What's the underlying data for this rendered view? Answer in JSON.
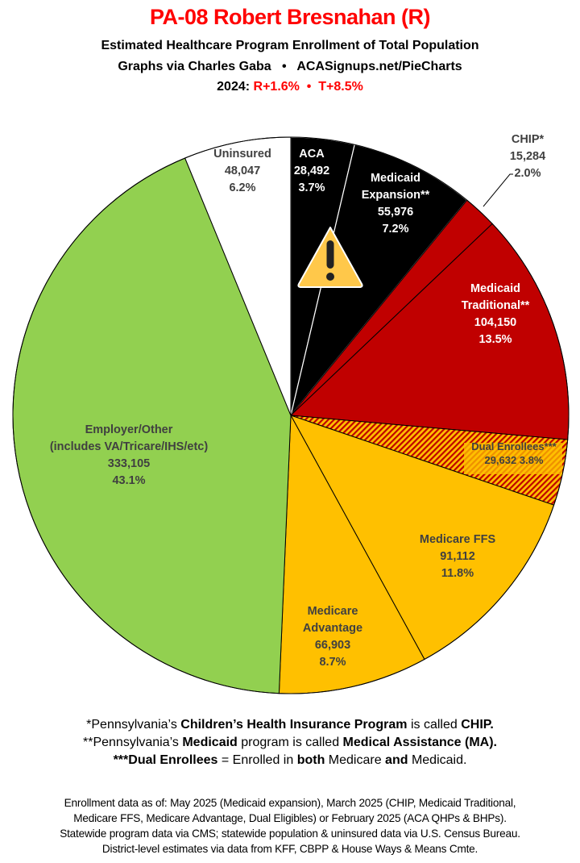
{
  "header": {
    "title": "PA-08 Robert Bresnahan (R)",
    "subtitle1": "Estimated Healthcare Program Enrollment of Total Population",
    "subtitle2": "Graphs via Charles Gaba   •   ACASignups.net/PieCharts",
    "year_label": "2024:",
    "margins": "R+1.6%  •  T+8.5%"
  },
  "chart_data": {
    "type": "pie",
    "start": "12 o'clock, clockwise",
    "slices": [
      {
        "label": "ACA",
        "value": 28492,
        "percent": "3.7%",
        "color": "#000000",
        "text_color": "#ffffff"
      },
      {
        "label": "Medicaid Expansion**",
        "value": 55976,
        "percent": "7.2%",
        "color": "#000000",
        "text_color": "#ffffff"
      },
      {
        "label": "CHIP*",
        "value": 15284,
        "percent": "2.0%",
        "color": "#c00000",
        "text_color": "#404040"
      },
      {
        "label": "Medicaid Traditional**",
        "value": 104150,
        "percent": "13.5%",
        "color": "#c00000",
        "text_color": "#ffffff"
      },
      {
        "label": "Dual Enrollees***",
        "value": 29632,
        "percent": "3.8%",
        "color": "hatch #c00000/#ffc000",
        "text_color": "#404040"
      },
      {
        "label": "Medicare FFS",
        "value": 91112,
        "percent": "11.8%",
        "color": "#ffc000",
        "text_color": "#404040"
      },
      {
        "label": "Medicare Advantage",
        "value": 66903,
        "percent": "8.7%",
        "color": "#ffc000",
        "text_color": "#404040"
      },
      {
        "label": "Employer/Other (includes VA/Tricare/IHS/etc)",
        "value": 333105,
        "percent": "43.1%",
        "color": "#92d050",
        "text_color": "#404040"
      },
      {
        "label": "Uninsured",
        "value": 48047,
        "percent": "6.2%",
        "color": "#ffffff",
        "text_color": "#404040"
      }
    ],
    "label_lines": [
      [
        "ACA",
        "28,492",
        "3.7%"
      ],
      [
        "Medicaid",
        "Expansion**",
        "55,976",
        "7.2%"
      ],
      [
        "CHIP*",
        "15,284",
        "2.0%"
      ],
      [
        "Medicaid",
        "Traditional**",
        "104,150",
        "13.5%"
      ],
      [
        "Dual Enrollees***",
        "29,632 3.8%"
      ],
      [
        "Medicare FFS",
        "91,112",
        "11.8%"
      ],
      [
        "Medicare",
        "Advantage",
        "66,903",
        "8.7%"
      ],
      [
        "Employer/Other",
        "(includes VA/Tricare/IHS/etc)",
        "333,105",
        "43.1%"
      ],
      [
        "Uninsured",
        "48,047",
        "6.2%"
      ]
    ],
    "annotation_icon": "warning-triangle-icon"
  },
  "footnotes": {
    "l1": [
      "*Pennsylvania’s ",
      "Children’s Health Insurance Program",
      " is called ",
      "CHIP."
    ],
    "l2": [
      "**Pennsylvania’s ",
      "Medicaid",
      " program is called ",
      "Medical Assistance (MA)."
    ],
    "l3": [
      "***Dual Enrollees",
      " = Enrolled in ",
      "both",
      " Medicare ",
      "and",
      " Medicaid."
    ]
  },
  "sources": [
    "Enrollment data as of: May 2025 (Medicaid expansion), March 2025 (CHIP, Medicaid Traditional,",
    "Medicare FFS, Medicare Advantage, Dual Eligibles) or February 2025 (ACA QHPs & BHPs).",
    "Statewide program data via CMS; statewide population & uninsured data via U.S. Census Bureau.",
    "District-level estimates via data from KFF, CBPP & House Ways & Means Cmte."
  ]
}
